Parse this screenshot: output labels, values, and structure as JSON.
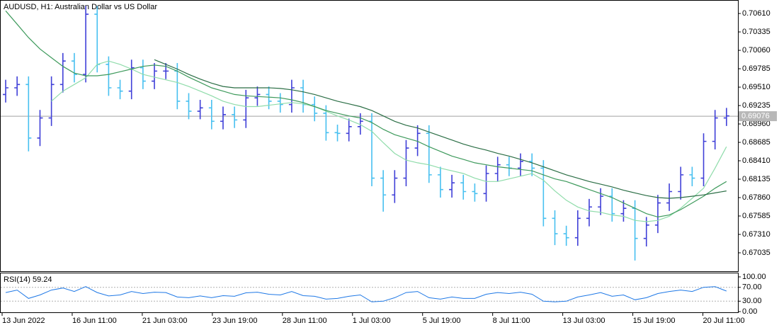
{
  "chart_data": {
    "type": "ohlc",
    "title": "AUDUSD, H1:  Australian Dollar vs US Dollar",
    "up_color": "#4040d8",
    "down_color": "#48c0f0",
    "open": [
      0.694,
      0.695,
      0.6955,
      0.6875,
      0.6905,
      0.6955,
      0.699,
      0.697,
      0.706,
      0.6985,
      0.695,
      0.6945,
      0.698,
      0.696,
      0.6975,
      0.6975,
      0.693,
      0.6915,
      0.692,
      0.69,
      0.691,
      0.6902,
      0.6935,
      0.694,
      0.693,
      0.6925,
      0.695,
      0.6925,
      0.6912,
      0.6883,
      0.6882,
      0.6892,
      0.69,
      0.6815,
      0.679,
      0.6815,
      0.686,
      0.6882,
      0.682,
      0.6798,
      0.6808,
      0.6795,
      0.6792,
      0.6822,
      0.6835,
      0.683,
      0.684,
      0.683,
      0.6755,
      0.6732,
      0.6726,
      0.6755,
      0.6772,
      0.6788,
      0.6762,
      0.677,
      0.6725,
      0.6745,
      0.6778,
      0.6795,
      0.682,
      0.6815,
      0.687,
      0.6905
    ],
    "high": [
      0.6962,
      0.6967,
      0.6967,
      0.6917,
      0.6967,
      0.7002,
      0.7002,
      0.7072,
      0.7072,
      0.6997,
      0.6962,
      0.6992,
      0.6992,
      0.6987,
      0.6987,
      0.6987,
      0.6942,
      0.6932,
      0.6932,
      0.6922,
      0.6922,
      0.6947,
      0.6952,
      0.6952,
      0.6942,
      0.6962,
      0.6962,
      0.6937,
      0.6924,
      0.6895,
      0.6904,
      0.6912,
      0.6912,
      0.6827,
      0.6827,
      0.6872,
      0.6894,
      0.6894,
      0.6832,
      0.682,
      0.682,
      0.6807,
      0.6834,
      0.6847,
      0.6847,
      0.6852,
      0.6852,
      0.6842,
      0.6767,
      0.6744,
      0.6767,
      0.6784,
      0.68,
      0.68,
      0.6782,
      0.6782,
      0.6757,
      0.679,
      0.6807,
      0.6832,
      0.6832,
      0.6882,
      0.6917,
      0.692
    ],
    "low": [
      0.6928,
      0.6938,
      0.6855,
      0.6863,
      0.6893,
      0.6943,
      0.6958,
      0.6958,
      0.6973,
      0.6938,
      0.6933,
      0.6933,
      0.6948,
      0.6948,
      0.6963,
      0.6918,
      0.6903,
      0.6903,
      0.6888,
      0.6888,
      0.689,
      0.689,
      0.6923,
      0.6918,
      0.6913,
      0.6913,
      0.6913,
      0.69,
      0.6871,
      0.687,
      0.687,
      0.688,
      0.6803,
      0.6765,
      0.6778,
      0.6803,
      0.6848,
      0.6808,
      0.6786,
      0.6786,
      0.6783,
      0.678,
      0.678,
      0.681,
      0.6818,
      0.6818,
      0.6818,
      0.6743,
      0.6715,
      0.6714,
      0.6714,
      0.6743,
      0.676,
      0.675,
      0.675,
      0.6692,
      0.6713,
      0.6733,
      0.6766,
      0.6783,
      0.6803,
      0.6803,
      0.6858,
      0.6893
    ],
    "close": [
      0.695,
      0.6955,
      0.6875,
      0.6905,
      0.6955,
      0.699,
      0.697,
      0.706,
      0.6985,
      0.695,
      0.6945,
      0.698,
      0.696,
      0.6975,
      0.6975,
      0.693,
      0.6915,
      0.692,
      0.69,
      0.691,
      0.6902,
      0.6935,
      0.694,
      0.693,
      0.6925,
      0.695,
      0.6925,
      0.6912,
      0.6883,
      0.6882,
      0.6892,
      0.69,
      0.6815,
      0.679,
      0.6815,
      0.686,
      0.6882,
      0.682,
      0.6798,
      0.6808,
      0.6795,
      0.6792,
      0.6822,
      0.6835,
      0.683,
      0.684,
      0.683,
      0.6755,
      0.6732,
      0.6726,
      0.6755,
      0.6772,
      0.6788,
      0.6762,
      0.677,
      0.6725,
      0.6745,
      0.6778,
      0.6795,
      0.682,
      0.6815,
      0.687,
      0.6905,
      0.6908
    ],
    "overlays": [
      {
        "color": "#8fdcaa",
        "values": [
          null,
          null,
          null,
          null,
          0.693,
          0.6945,
          0.6955,
          0.6965,
          0.6985,
          0.699,
          0.6985,
          0.6978,
          0.697,
          0.6966,
          0.6962,
          0.6958,
          0.6952,
          0.6945,
          0.6938,
          0.693,
          0.6925,
          0.6922,
          0.6922,
          0.6924,
          0.6926,
          0.6928,
          0.6926,
          0.6922,
          0.6915,
          0.6908,
          0.6902,
          0.6895,
          0.6885,
          0.6868,
          0.6852,
          0.6842,
          0.6838,
          0.6835,
          0.683,
          0.6826,
          0.6822,
          0.6815,
          0.681,
          0.681,
          0.6814,
          0.6818,
          0.6822,
          0.6812,
          0.6796,
          0.6782,
          0.6772,
          0.6766,
          0.6764,
          0.676,
          0.6758,
          0.6752,
          0.675,
          0.6752,
          0.6758,
          0.677,
          0.6785,
          0.68,
          0.683,
          0.6862
        ]
      },
      {
        "color": "#3e9a5c",
        "values": [
          0.7065,
          0.7045,
          0.7025,
          0.7008,
          0.6995,
          0.6982,
          0.6972,
          0.6968,
          0.6968,
          0.697,
          0.6974,
          0.6978,
          0.6982,
          0.6984,
          0.6982,
          0.6975,
          0.6966,
          0.6958,
          0.695,
          0.6945,
          0.694,
          0.6938,
          0.6937,
          0.6936,
          0.6935,
          0.6932,
          0.6928,
          0.6922,
          0.6916,
          0.6912,
          0.6908,
          0.6905,
          0.6898,
          0.6888,
          0.688,
          0.6875,
          0.687,
          0.6862,
          0.6855,
          0.6848,
          0.6843,
          0.6838,
          0.6835,
          0.6832,
          0.683,
          0.6828,
          0.6826,
          0.682,
          0.6814,
          0.681,
          0.6804,
          0.6798,
          0.6792,
          0.6786,
          0.6778,
          0.677,
          0.6762,
          0.6757,
          0.676,
          0.6768,
          0.6778,
          0.6788,
          0.68,
          0.681
        ]
      },
      {
        "color": "#2b6e45",
        "values": [
          null,
          null,
          null,
          null,
          null,
          null,
          null,
          null,
          null,
          null,
          null,
          null,
          null,
          0.6992,
          0.6985,
          0.6978,
          0.697,
          0.6963,
          0.6957,
          0.6952,
          0.695,
          0.695,
          0.695,
          0.695,
          0.6949,
          0.6947,
          0.6944,
          0.694,
          0.6935,
          0.693,
          0.6926,
          0.6922,
          0.6916,
          0.6908,
          0.69,
          0.6894,
          0.689,
          0.6884,
          0.6878,
          0.6872,
          0.6866,
          0.6861,
          0.6857,
          0.6852,
          0.6848,
          0.6843,
          0.6838,
          0.6832,
          0.6826,
          0.682,
          0.6815,
          0.681,
          0.6806,
          0.6802,
          0.6797,
          0.6793,
          0.6789,
          0.6786,
          0.6785,
          0.6786,
          0.6788,
          0.679,
          0.6793,
          0.6796
        ]
      }
    ],
    "ylim": [
      0.6676,
      0.7078
    ],
    "yticks": [
      {
        "value": 0.7061,
        "label": "0.70610"
      },
      {
        "value": 0.70335,
        "label": "0.70335"
      },
      {
        "value": 0.7006,
        "label": "0.70060"
      },
      {
        "value": 0.69785,
        "label": "0.69785"
      },
      {
        "value": 0.6951,
        "label": "0.69510"
      },
      {
        "value": 0.69235,
        "label": "0.69235"
      },
      {
        "value": 0.6896,
        "label": "0.68960"
      },
      {
        "value": 0.68685,
        "label": "0.68685"
      },
      {
        "value": 0.6841,
        "label": "0.68410"
      },
      {
        "value": 0.68135,
        "label": "0.68135"
      },
      {
        "value": 0.6786,
        "label": "0.67860"
      },
      {
        "value": 0.67585,
        "label": "0.67585"
      },
      {
        "value": 0.6731,
        "label": "0.67310"
      },
      {
        "value": 0.67035,
        "label": "0.67035"
      }
    ],
    "last_price": 0.69076,
    "x_labels": [
      "13 Jun 2022",
      "16 Jun 11:00",
      "21 Jun 03:00",
      "23 Jun 19:00",
      "28 Jun 11:00",
      "1 Jul 03:00",
      "5 Jul 19:00",
      "8 Jul 11:00",
      "13 Jul 03:00",
      "15 Jul 19:00",
      "20 Jul 11:00"
    ],
    "rsi": {
      "label": "RSI(14) 59.24",
      "color": "#1e78e6",
      "values": [
        55,
        62,
        38,
        48,
        62,
        68,
        58,
        72,
        55,
        45,
        48,
        58,
        52,
        56,
        55,
        42,
        40,
        45,
        40,
        46,
        44,
        54,
        56,
        50,
        48,
        58,
        46,
        44,
        36,
        38,
        44,
        48,
        28,
        30,
        40,
        55,
        58,
        40,
        36,
        42,
        38,
        38,
        50,
        55,
        52,
        56,
        50,
        30,
        28,
        30,
        42,
        48,
        55,
        44,
        48,
        34,
        40,
        52,
        58,
        62,
        58,
        70,
        72,
        59.24
      ],
      "ylim": [
        0,
        100
      ],
      "yticks": [
        {
          "value": 100,
          "label": "100.00"
        },
        {
          "value": 70,
          "label": "70.00"
        },
        {
          "value": 30,
          "label": "30.00"
        },
        {
          "value": 0,
          "label": "0.00"
        }
      ],
      "levels": [
        70,
        30
      ]
    }
  }
}
